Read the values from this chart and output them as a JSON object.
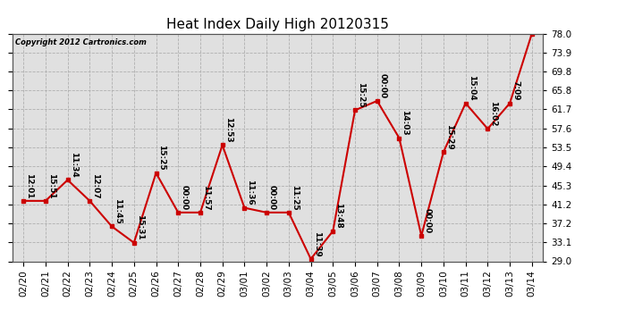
{
  "title": "Heat Index Daily High 20120315",
  "copyright": "Copyright 2012 Cartronics.com",
  "dates": [
    "02/20",
    "02/21",
    "02/22",
    "02/23",
    "02/24",
    "02/25",
    "02/26",
    "02/27",
    "02/28",
    "02/29",
    "03/01",
    "03/02",
    "03/03",
    "03/04",
    "03/05",
    "03/06",
    "03/07",
    "03/08",
    "03/09",
    "03/10",
    "03/11",
    "03/12",
    "03/13",
    "03/14"
  ],
  "values": [
    42.0,
    42.0,
    46.5,
    42.0,
    36.5,
    33.0,
    48.0,
    39.5,
    39.5,
    54.0,
    40.5,
    39.5,
    39.5,
    29.5,
    35.5,
    61.5,
    63.5,
    55.5,
    34.5,
    52.5,
    63.0,
    57.5,
    63.0,
    78.0
  ],
  "point_labels": [
    "12:01",
    "15:51",
    "11:34",
    "12:07",
    "11:45",
    "15:31",
    "15:25",
    "00:00",
    "11:57",
    "12:53",
    "11:36",
    "00:00",
    "11:25",
    "11:39",
    "13:48",
    "15:25",
    "00:00",
    "14:03",
    "00:00",
    "15:29",
    "15:04",
    "16:02",
    "7:09",
    ""
  ],
  "ylim": [
    29.0,
    78.0
  ],
  "yticks": [
    29.0,
    33.1,
    37.2,
    41.2,
    45.3,
    49.4,
    53.5,
    57.6,
    61.7,
    65.8,
    69.8,
    73.9,
    78.0
  ],
  "line_color": "#cc0000",
  "marker_color": "#cc0000",
  "bg_color": "#e0e0e0",
  "grid_color": "#aaaaaa",
  "title_fontsize": 11,
  "tick_fontsize": 7.5,
  "label_fontsize": 6.5
}
